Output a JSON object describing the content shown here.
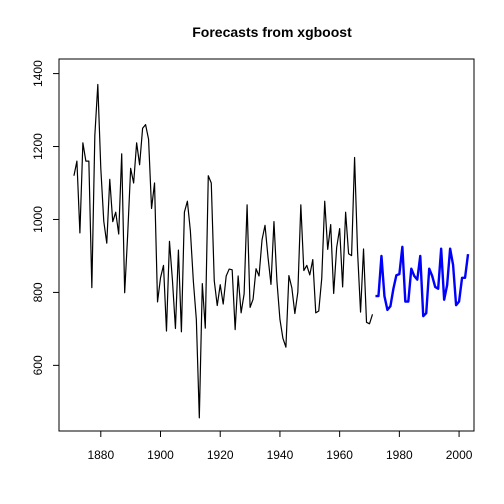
{
  "chart_data": {
    "type": "line",
    "title": "Forecasts from xgboost",
    "xlabel": "",
    "ylabel": "",
    "xlim": [
      1866,
      2005
    ],
    "ylim": [
      420,
      1440
    ],
    "x_ticks": [
      1880,
      1900,
      1920,
      1940,
      1960,
      1980,
      2000
    ],
    "y_ticks": [
      600,
      800,
      1000,
      1200,
      1400
    ],
    "grid": false,
    "series": [
      {
        "color": "#000000",
        "x_start": 1871,
        "values": [
          1120,
          1160,
          963,
          1210,
          1160,
          1160,
          813,
          1230,
          1370,
          1140,
          995,
          935,
          1110,
          994,
          1020,
          960,
          1180,
          799,
          958,
          1140,
          1100,
          1210,
          1150,
          1250,
          1260,
          1220,
          1030,
          1100,
          774,
          840,
          874,
          694,
          940,
          833,
          701,
          916,
          692,
          1020,
          1050,
          969,
          831,
          726,
          456,
          824,
          702,
          1120,
          1100,
          832,
          764,
          821,
          768,
          845,
          864,
          862,
          698,
          845,
          744,
          796,
          1040,
          759,
          781,
          865,
          845,
          944,
          984,
          897,
          822,
          994,
          830,
          726,
          674,
          650,
          846,
          812,
          742,
          801,
          1040,
          860,
          874,
          848,
          890,
          744,
          749,
          838,
          1050,
          918,
          986,
          797,
          923,
          975,
          815,
          1020,
          906,
          901,
          1170,
          912,
          746,
          919,
          718,
          714,
          740
        ]
      },
      {
        "color": "#0000ff",
        "x_start": 1972,
        "values": [
          790,
          790,
          900,
          790,
          752,
          762,
          810,
          847,
          850,
          925,
          775,
          775,
          865,
          845,
          835,
          900,
          735,
          743,
          865,
          845,
          815,
          810,
          920,
          780,
          820,
          920,
          875,
          765,
          775,
          840,
          840,
          905
        ]
      }
    ]
  }
}
